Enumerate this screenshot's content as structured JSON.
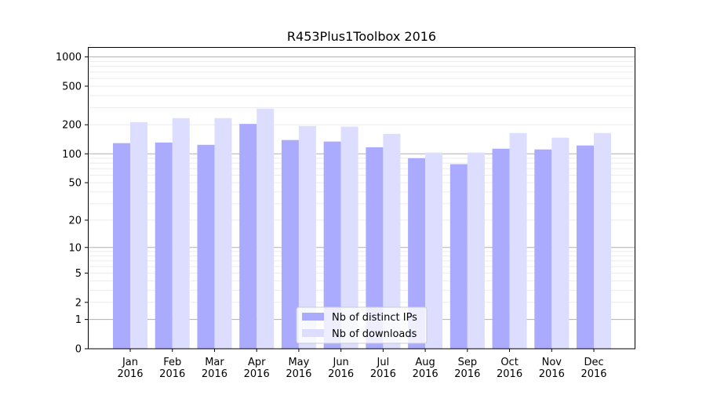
{
  "chart_data": {
    "type": "bar",
    "title": "R453Plus1Toolbox 2016",
    "xlabel": "",
    "ylabel": "",
    "yscale": "log(1+y)",
    "ylim": [
      0,
      1250
    ],
    "grid": true,
    "legend_position": "lower center",
    "categories": [
      "Jan\n2016",
      "Feb\n2016",
      "Mar\n2016",
      "Apr\n2016",
      "May\n2016",
      "Jun\n2016",
      "Jul\n2016",
      "Aug\n2016",
      "Sep\n2016",
      "Oct\n2016",
      "Nov\n2016",
      "Dec\n2016"
    ],
    "category_labels": [
      [
        "Jan",
        "2016"
      ],
      [
        "Feb",
        "2016"
      ],
      [
        "Mar",
        "2016"
      ],
      [
        "Apr",
        "2016"
      ],
      [
        "May",
        "2016"
      ],
      [
        "Jun",
        "2016"
      ],
      [
        "Jul",
        "2016"
      ],
      [
        "Aug",
        "2016"
      ],
      [
        "Sep",
        "2016"
      ],
      [
        "Oct",
        "2016"
      ],
      [
        "Nov",
        "2016"
      ],
      [
        "Dec",
        "2016"
      ]
    ],
    "yticks": [
      0,
      1,
      2,
      5,
      10,
      20,
      50,
      100,
      200,
      500,
      1000
    ],
    "ytick_labels": [
      "0",
      "1",
      "2",
      "5",
      "10",
      "20",
      "50",
      "100",
      "200",
      "500",
      "1000"
    ],
    "series": [
      {
        "name": "Nb of distinct IPs",
        "color": "#aaaaff",
        "values": [
          129,
          131,
          124,
          204,
          139,
          134,
          117,
          90,
          78,
          113,
          111,
          122
        ]
      },
      {
        "name": "Nb of downloads",
        "color": "#ddddff",
        "values": [
          213,
          234,
          234,
          293,
          194,
          191,
          161,
          103,
          103,
          164,
          147,
          164
        ]
      }
    ]
  }
}
